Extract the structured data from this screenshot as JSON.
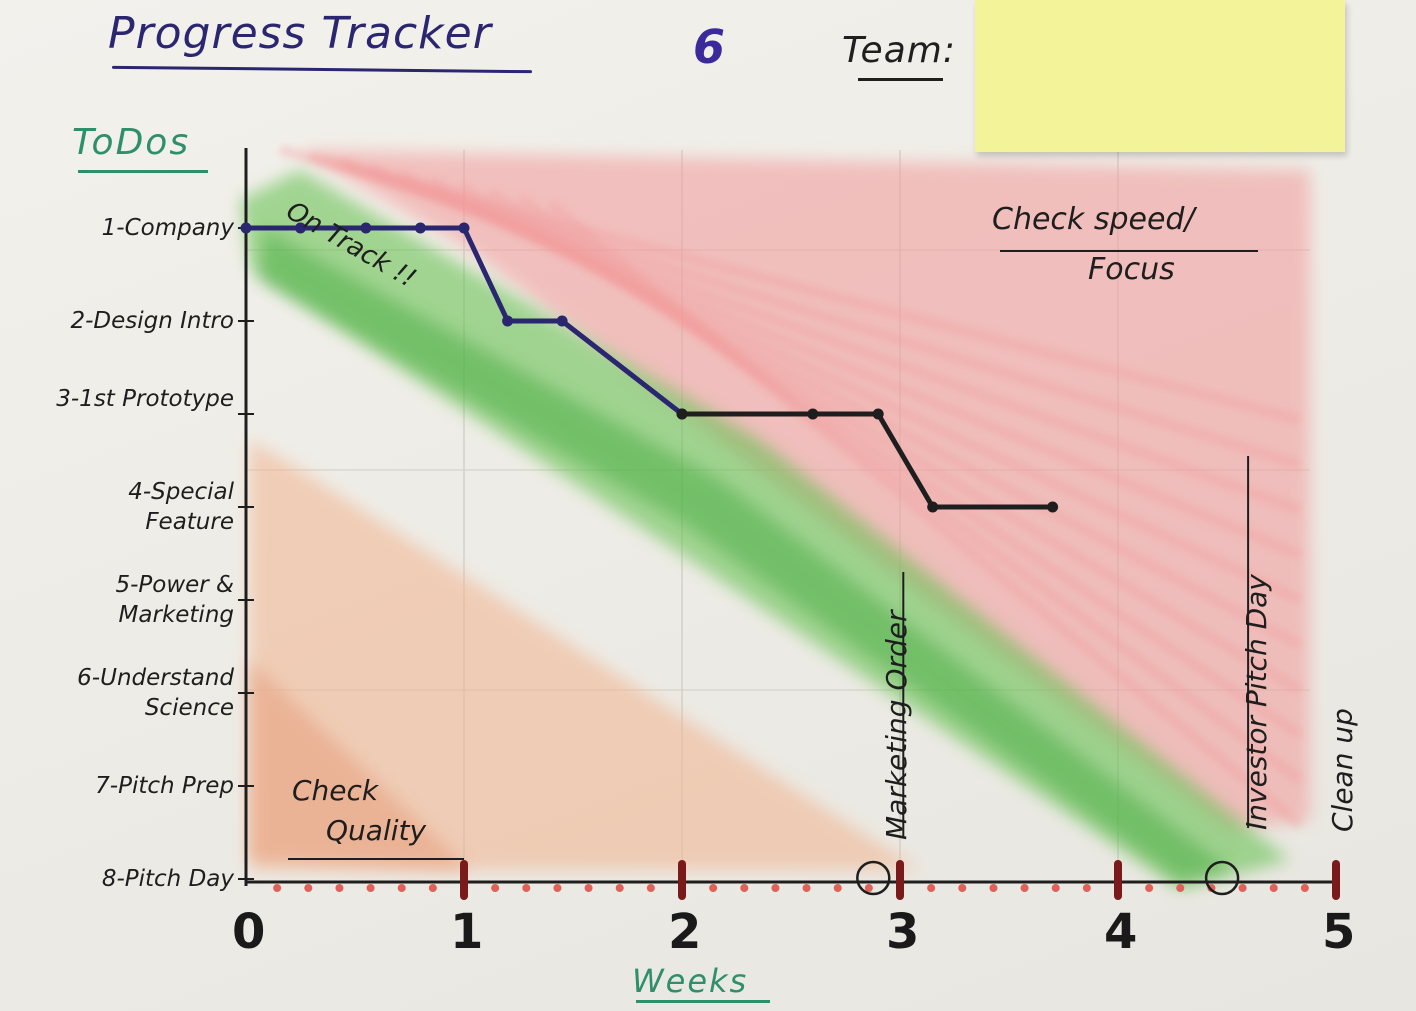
{
  "title": "Progress Tracker",
  "team_number": "6",
  "team_label": "Team:",
  "todos_label": "ToDos",
  "x_axis_label": "Weeks",
  "tasks": [
    "1-Company",
    "2-Design Intro",
    "3-1st Prototype",
    "4-Special Feature",
    "5-Power & Marketing",
    "6-Understand Science",
    "7-Pitch Prep",
    "8-Pitch Day"
  ],
  "week_ticks": [
    "0",
    "1",
    "2",
    "3",
    "4",
    "5"
  ],
  "annotations": {
    "on_track": "On Track !!",
    "check_speed": "Check speed/",
    "focus": "Focus",
    "check": "Check",
    "quality": "Quality",
    "marketing_order": "Marketing Order",
    "investor_pitch_day": "Investor Pitch Day",
    "clean_up": "Clean up"
  },
  "colors": {
    "ink_blue": "#2a2670",
    "ink_black": "#1e1e1e",
    "green_zone": "#5fbf4a",
    "red_zone": "#f29a9a",
    "orange_zone": "#f2b48f",
    "sticky_note": "#f3f39a"
  },
  "chart_data": {
    "type": "line",
    "xlabel": "Weeks",
    "ylabel": "ToDos",
    "xlim": [
      0,
      5
    ],
    "y_categories": [
      "1-Company",
      "2-Design Intro",
      "3-1st Prototype",
      "4-Special Feature",
      "5-Power & Marketing",
      "6-Understand Science",
      "7-Pitch Prep",
      "8-Pitch Day"
    ],
    "series": [
      {
        "ink": "blue",
        "points": [
          [
            0,
            1
          ],
          [
            0.25,
            1
          ],
          [
            0.55,
            1
          ],
          [
            0.8,
            1
          ],
          [
            1.0,
            1
          ],
          [
            1.2,
            2
          ],
          [
            1.45,
            2
          ],
          [
            2.0,
            3
          ]
        ]
      },
      {
        "ink": "black",
        "points": [
          [
            2.0,
            3
          ],
          [
            2.6,
            3
          ],
          [
            2.9,
            3
          ],
          [
            3.15,
            4
          ],
          [
            3.7,
            4
          ]
        ]
      }
    ],
    "milestones": [
      {
        "label": "Marketing Order",
        "x": 2.85
      },
      {
        "label": "Investor Pitch Day",
        "x": 4.45
      }
    ]
  }
}
